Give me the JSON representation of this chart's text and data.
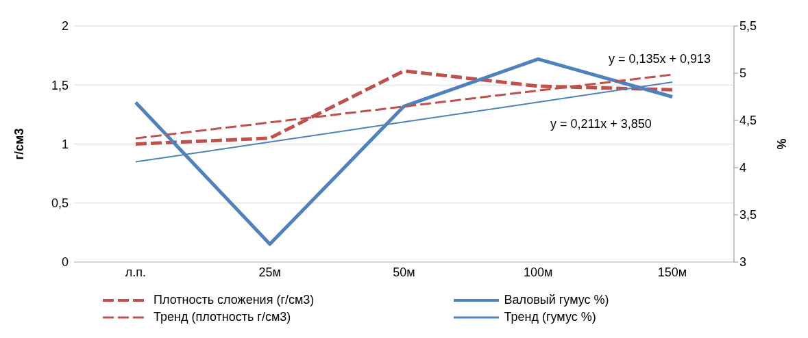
{
  "chart_data": {
    "type": "line",
    "categories": [
      "л.п.",
      "25м",
      "50м",
      "100м",
      "150м"
    ],
    "series": [
      {
        "name": "Плотность сложения (г/см3)",
        "color": "#c0504d",
        "values": [
          1.0,
          1.05,
          1.62,
          1.49,
          1.46
        ],
        "line_style": "dashed"
      },
      {
        "name": "Валовый гумус %)",
        "color": "#4f81bd",
        "values": [
          4.69,
          3.19,
          4.65,
          5.15,
          4.75
        ],
        "axis": "y2",
        "line_style": "solid"
      },
      {
        "name": "Тренд (плотность г/см3)",
        "color": "#c0504d",
        "values": [
          1.048,
          1.183,
          1.318,
          1.453,
          1.588
        ],
        "line_style": "dashed"
      },
      {
        "name": "Тренд (гумус %)",
        "color": "#4f81bd",
        "values": [
          4.061,
          4.272,
          4.483,
          4.694,
          4.905
        ],
        "axis": "y2",
        "line_style": "solid"
      }
    ],
    "ylabel": "г/см3",
    "y2label": "%",
    "ylim": [
      0,
      2
    ],
    "yticks": [
      0,
      {
        "value": 0.5,
        "label": "0,5"
      },
      1,
      {
        "value": 1.5,
        "label": "1,5"
      },
      2
    ],
    "y2lim": [
      3,
      5.5
    ],
    "y2ticks": [
      3,
      {
        "value": 3.5,
        "label": "3,5"
      },
      4,
      {
        "value": 4.5,
        "label": "4,5"
      },
      5,
      {
        "value": 5.5,
        "label": "5,5"
      }
    ],
    "annotations": [
      "y = 0,135x + 0,913",
      "y = 0,211x + 3,850"
    ],
    "grid": "y",
    "legend": "bottom",
    "marker": "none"
  }
}
